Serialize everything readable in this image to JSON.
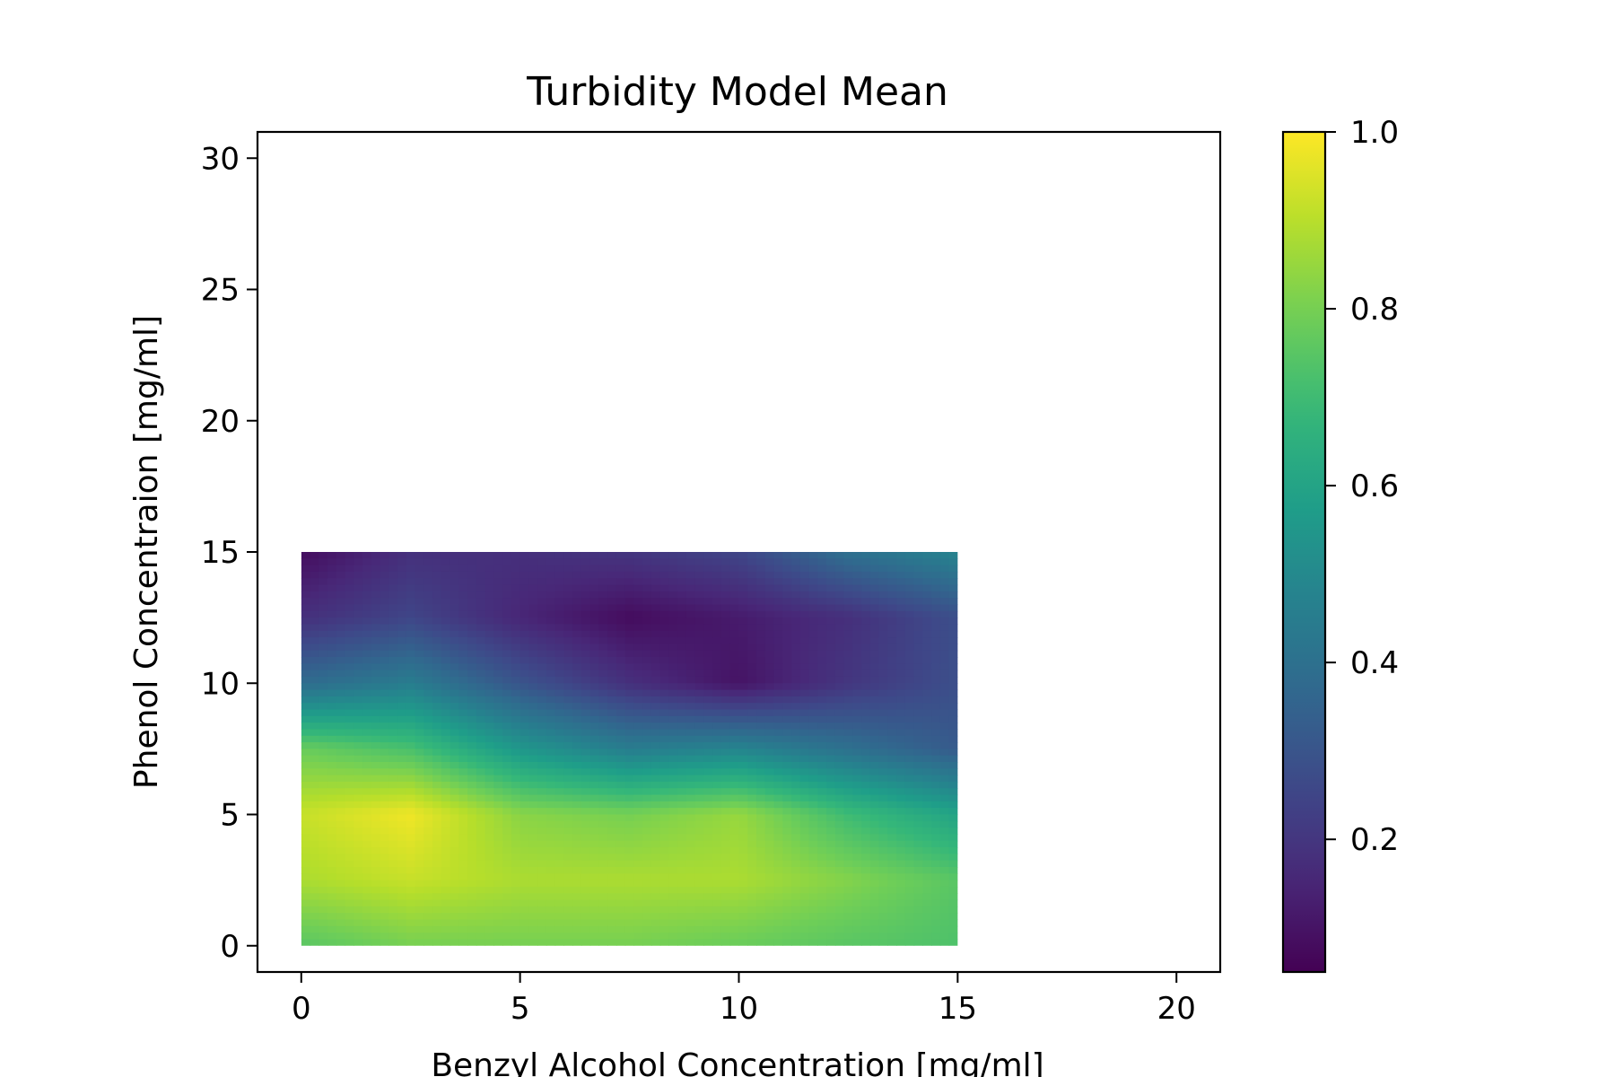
{
  "chart_data": {
    "type": "heatmap",
    "title": "Turbidity Model Mean",
    "xlabel": "Benzyl Alcohol Concentration [mg/ml]",
    "ylabel": "Phenol Concentraion [mg/ml]",
    "xlim": [
      -1,
      21
    ],
    "ylim": [
      -1,
      31
    ],
    "x_ticks": [
      0,
      5,
      10,
      15,
      20
    ],
    "y_ticks": [
      0,
      5,
      10,
      15,
      20,
      25,
      30
    ],
    "colormap": "viridis",
    "colorbar": {
      "range": [
        0.05,
        1.0
      ],
      "ticks": [
        "0.2",
        "0.4",
        "0.6",
        "0.8",
        "1.0"
      ]
    },
    "extent": {
      "x": [
        0,
        15
      ],
      "y": [
        0,
        15
      ]
    },
    "grid_x": [
      0,
      2.5,
      5,
      7.5,
      10,
      12.5,
      15
    ],
    "grid_y": [
      15,
      12.5,
      10,
      7.5,
      5,
      2.5,
      0
    ],
    "values": [
      [
        0.08,
        0.18,
        0.18,
        0.2,
        0.25,
        0.4,
        0.48
      ],
      [
        0.18,
        0.25,
        0.15,
        0.08,
        0.12,
        0.18,
        0.28
      ],
      [
        0.38,
        0.45,
        0.3,
        0.18,
        0.1,
        0.2,
        0.28
      ],
      [
        0.78,
        0.72,
        0.55,
        0.45,
        0.48,
        0.4,
        0.32
      ],
      [
        0.92,
        0.98,
        0.83,
        0.8,
        0.85,
        0.7,
        0.6
      ],
      [
        0.88,
        0.92,
        0.88,
        0.88,
        0.88,
        0.82,
        0.75
      ],
      [
        0.75,
        0.8,
        0.8,
        0.8,
        0.78,
        0.75,
        0.73
      ]
    ]
  }
}
